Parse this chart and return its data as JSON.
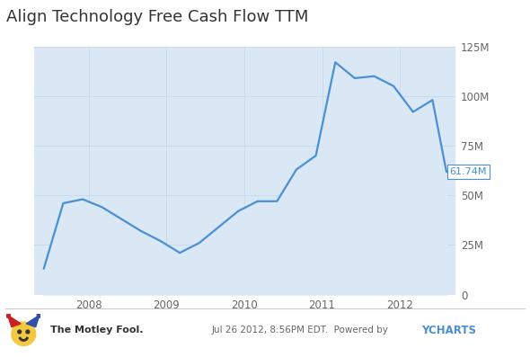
{
  "title": "Align Technology Free Cash Flow TTM",
  "title_fontsize": 13,
  "title_color": "#333333",
  "line_color": "#4a8fd4",
  "fill_color": "#dae8f5",
  "plot_bg": "#dae8f5",
  "outer_bg": "#ffffff",
  "ylim": [
    0,
    125000000
  ],
  "yticks": [
    0,
    25000000,
    50000000,
    75000000,
    100000000,
    125000000
  ],
  "ytick_labels": [
    "0",
    "25M",
    "50M",
    "75M",
    "100M",
    "125M"
  ],
  "last_value_label": "61.74M",
  "last_value_color": "#4a8fd4",
  "grid_color": "#c5d8ea",
  "line_width": 1.6,
  "xtick_years": [
    2008,
    2009,
    2010,
    2011,
    2012
  ],
  "x_min": 2007.3,
  "x_max": 2012.72,
  "x_values": [
    2007.42,
    2007.67,
    2007.92,
    2008.17,
    2008.42,
    2008.67,
    2008.92,
    2009.17,
    2009.42,
    2009.67,
    2009.92,
    2010.17,
    2010.42,
    2010.67,
    2010.92,
    2011.17,
    2011.42,
    2011.67,
    2011.92,
    2012.17,
    2012.42,
    2012.6
  ],
  "y_values": [
    13000000,
    46000000,
    48000000,
    44000000,
    38000000,
    32000000,
    27000000,
    21000000,
    26000000,
    34000000,
    42000000,
    47000000,
    47000000,
    63000000,
    70000000,
    117000000,
    109000000,
    110000000,
    105000000,
    92000000,
    98000000,
    61740000
  ]
}
